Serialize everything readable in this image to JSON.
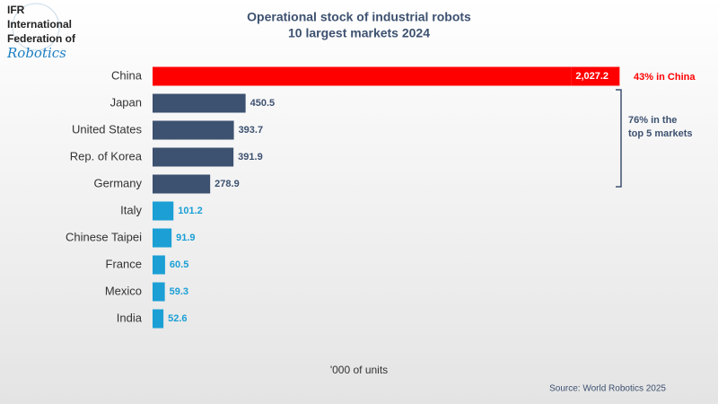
{
  "logo": {
    "lines": [
      "IFR",
      "International",
      "Federation of"
    ],
    "script": "Robotics"
  },
  "chart_data": {
    "type": "hbar",
    "title": "Operational stock of industrial robots",
    "subtitle": "10 largest markets 2024",
    "categories": [
      "China",
      "Japan",
      "United States",
      "Rep. of Korea",
      "Germany",
      "Italy",
      "Chinese Taipei",
      "France",
      "Mexico",
      "India"
    ],
    "values": [
      2027.2,
      450.5,
      393.7,
      391.9,
      278.9,
      101.2,
      91.9,
      60.5,
      59.3,
      52.6
    ],
    "value_labels": [
      "2,027.2",
      "450.5",
      "393.7",
      "391.9",
      "278.9",
      "101.2",
      "91.9",
      "60.5",
      "59.3",
      "52.6"
    ],
    "colors": [
      "#ff0000",
      "#3d5170",
      "#3d5170",
      "#3d5170",
      "#3d5170",
      "#1b9fd5",
      "#1b9fd5",
      "#1b9fd5",
      "#1b9fd5",
      "#1b9fd5"
    ],
    "xlim": [
      0,
      2030
    ],
    "xlabel": "'000 of units",
    "annotations": [
      {
        "lines": [
          "43% in China"
        ],
        "color": "#ff0000"
      },
      {
        "lines": [
          "76% in the",
          "top 5 markets"
        ],
        "color": "#3d5170"
      }
    ],
    "source": "Source: World Robotics 2025"
  }
}
